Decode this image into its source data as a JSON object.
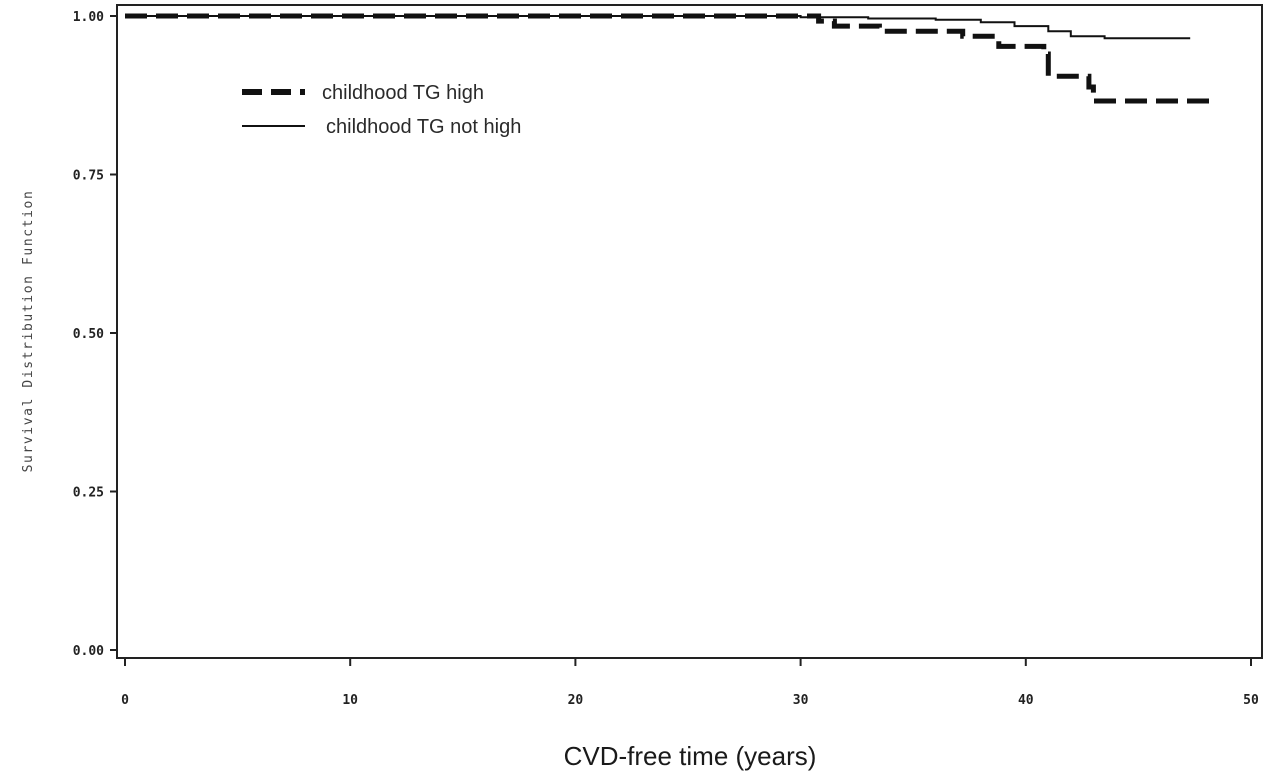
{
  "chart_data": {
    "type": "line",
    "title": "",
    "xlabel": "CVD-free time (years)",
    "ylabel": "Survival Distribution Function",
    "xlim": [
      0,
      50
    ],
    "ylim": [
      0,
      1
    ],
    "x_ticks": [
      0,
      10,
      20,
      30,
      40,
      50
    ],
    "y_ticks": [
      0,
      0.25,
      0.5,
      0.75,
      1
    ],
    "x_tick_labels": [
      "0",
      "10",
      "20",
      "30",
      "40",
      "50"
    ],
    "y_tick_labels": [
      "0.00",
      "0.25",
      "0.50",
      "0.75",
      "1.00"
    ],
    "grid": false,
    "legend_position": "top-left",
    "step": true,
    "series": [
      {
        "name": "childhood TG high",
        "style": "dashed",
        "color": "#111111",
        "points": [
          [
            0,
            1.0
          ],
          [
            30.8,
            1.0
          ],
          [
            30.8,
            0.992
          ],
          [
            31.5,
            0.992
          ],
          [
            31.5,
            0.984
          ],
          [
            33.5,
            0.984
          ],
          [
            33.5,
            0.976
          ],
          [
            37.2,
            0.976
          ],
          [
            37.2,
            0.968
          ],
          [
            38.8,
            0.968
          ],
          [
            38.8,
            0.952
          ],
          [
            40.8,
            0.952
          ],
          [
            40.8,
            0.94
          ],
          [
            41.0,
            0.94
          ],
          [
            41.0,
            0.905
          ],
          [
            42.8,
            0.905
          ],
          [
            42.8,
            0.888
          ],
          [
            43.0,
            0.888
          ],
          [
            43.0,
            0.866
          ],
          [
            48.5,
            0.866
          ]
        ]
      },
      {
        "name": "childhood TG not high",
        "style": "solid",
        "color": "#111111",
        "points": [
          [
            0,
            1.0
          ],
          [
            30.0,
            1.0
          ],
          [
            30.0,
            0.998
          ],
          [
            33.0,
            0.998
          ],
          [
            33.0,
            0.996
          ],
          [
            36.0,
            0.996
          ],
          [
            36.0,
            0.994
          ],
          [
            38.0,
            0.994
          ],
          [
            38.0,
            0.99
          ],
          [
            39.5,
            0.99
          ],
          [
            39.5,
            0.984
          ],
          [
            41.0,
            0.984
          ],
          [
            41.0,
            0.976
          ],
          [
            42.0,
            0.976
          ],
          [
            42.0,
            0.968
          ],
          [
            43.5,
            0.968
          ],
          [
            43.5,
            0.965
          ],
          [
            47.3,
            0.965
          ]
        ]
      }
    ]
  }
}
